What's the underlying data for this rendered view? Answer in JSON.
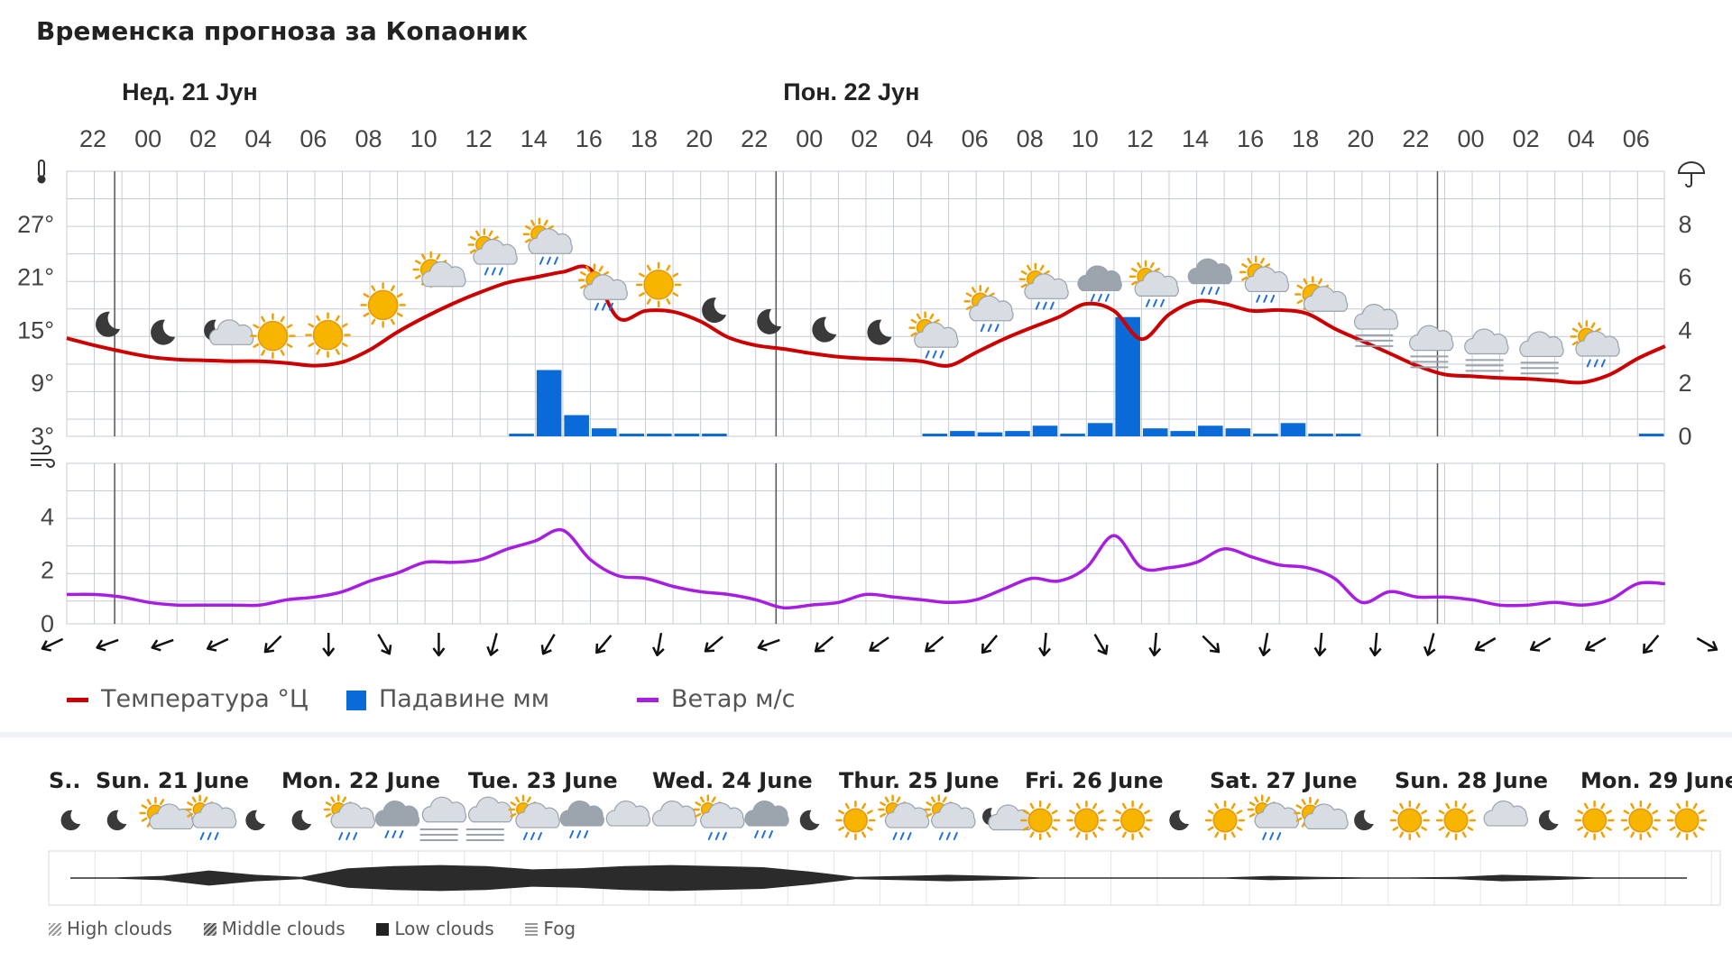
{
  "page": {
    "title": "Временска прогноза за Копаоник"
  },
  "chart_data": {
    "type": "line",
    "title": "Временска прогноза за Копаоник",
    "day_labels": [
      "Нед. 21 Јун",
      "Пон. 22 Јун"
    ],
    "hour_labels": [
      "22",
      "00",
      "02",
      "04",
      "06",
      "08",
      "10",
      "12",
      "14",
      "16",
      "18",
      "20",
      "22",
      "00",
      "02",
      "04",
      "06",
      "08",
      "10",
      "12",
      "14",
      "16",
      "18",
      "20",
      "22",
      "00",
      "02",
      "04",
      "06"
    ],
    "temperature": {
      "name": "Температура °Ц",
      "color": "#cc0000",
      "unit": "°",
      "ylim": [
        3,
        33
      ],
      "ticks": [
        "3°",
        "9°",
        "15°",
        "21°",
        "27°"
      ],
      "tick_values": [
        3,
        9,
        15,
        21,
        27
      ],
      "x_hours": [
        0,
        1,
        2,
        3,
        4,
        5,
        6,
        7,
        8,
        9,
        10,
        11,
        12,
        13,
        14,
        15,
        16,
        17,
        18,
        19,
        20,
        21,
        22,
        23,
        24,
        25,
        26,
        27,
        28,
        29,
        30,
        31,
        32,
        33,
        34,
        35,
        36,
        37,
        38,
        39,
        40,
        41,
        42,
        43,
        44,
        45,
        46,
        47,
        48,
        49,
        50,
        51,
        52,
        53,
        54,
        55,
        56,
        57,
        58
      ],
      "values": [
        14.1,
        13.3,
        12.6,
        12.0,
        11.7,
        11.6,
        11.5,
        11.5,
        11.3,
        11.0,
        11.4,
        12.8,
        14.8,
        16.5,
        18.0,
        19.3,
        20.4,
        21.0,
        21.6,
        21.9,
        16.4,
        17.2,
        17.1,
        16.0,
        14.2,
        13.3,
        12.9,
        12.4,
        12.0,
        11.8,
        11.7,
        11.5,
        11.0,
        12.5,
        14.0,
        15.3,
        16.5,
        18.0,
        17.2,
        14.0,
        16.8,
        18.3,
        18.0,
        17.2,
        17.3,
        16.9,
        15.2,
        13.8,
        12.4,
        11.0,
        10.0,
        9.8,
        9.6,
        9.5,
        9.3,
        9.1,
        10.0,
        11.8,
        13.2
      ]
    },
    "precipitation": {
      "name": "Падавине мм",
      "color": "#0a6ad8",
      "ylim": [
        0,
        10
      ],
      "ticks": [
        "0",
        "2",
        "4",
        "6",
        "8"
      ],
      "tick_values": [
        0,
        2,
        4,
        6,
        8
      ],
      "x_hours": [
        16,
        17,
        18,
        19,
        20,
        21,
        22,
        23,
        31,
        32,
        33,
        34,
        35,
        36,
        37,
        38,
        39,
        40,
        41,
        42,
        43,
        44,
        45,
        46,
        57
      ],
      "values": [
        0.1,
        2.5,
        0.8,
        0.3,
        0.1,
        0.1,
        0.1,
        0.1,
        0.1,
        0.2,
        0.15,
        0.2,
        0.4,
        0.1,
        0.5,
        4.5,
        0.3,
        0.2,
        0.4,
        0.3,
        0.1,
        0.5,
        0.1,
        0.1,
        0.1
      ]
    },
    "wind": {
      "name": "Ветар м/с",
      "color": "#a81ee0",
      "ylim": [
        0,
        6
      ],
      "ticks": [
        "0",
        "2",
        "4"
      ],
      "tick_values": [
        0,
        2,
        4
      ],
      "x_hours": [
        0,
        1,
        2,
        3,
        4,
        5,
        6,
        7,
        8,
        9,
        10,
        11,
        12,
        13,
        14,
        15,
        16,
        17,
        18,
        19,
        20,
        21,
        22,
        23,
        24,
        25,
        26,
        27,
        28,
        29,
        30,
        31,
        32,
        33,
        34,
        35,
        36,
        37,
        38,
        39,
        40,
        41,
        42,
        43,
        44,
        45,
        46,
        47,
        48,
        49,
        50,
        51,
        52,
        53,
        54,
        55,
        56,
        57,
        58
      ],
      "values": [
        1.1,
        1.1,
        1.0,
        0.8,
        0.7,
        0.7,
        0.7,
        0.7,
        0.9,
        1.0,
        1.2,
        1.6,
        1.9,
        2.3,
        2.3,
        2.4,
        2.8,
        3.1,
        3.5,
        2.4,
        1.8,
        1.7,
        1.4,
        1.2,
        1.1,
        0.9,
        0.6,
        0.7,
        0.8,
        1.1,
        1.0,
        0.9,
        0.8,
        0.9,
        1.3,
        1.7,
        1.6,
        2.1,
        3.3,
        2.1,
        2.1,
        2.3,
        2.8,
        2.5,
        2.2,
        2.1,
        1.7,
        0.8,
        1.2,
        1.0,
        1.0,
        0.9,
        0.7,
        0.7,
        0.8,
        0.7,
        0.9,
        1.5,
        1.5
      ]
    },
    "wind_directions_deg": [
      65,
      70,
      70,
      65,
      45,
      0,
      330,
      0,
      15,
      30,
      40,
      10,
      50,
      70,
      50,
      55,
      50,
      40,
      5,
      330,
      5,
      315,
      10,
      5,
      5,
      15,
      60,
      60,
      60,
      40,
      300
    ],
    "weather_icons": [
      "moon",
      "moon",
      "moon-cloud",
      "sun",
      "sun",
      "sun",
      "sun-cloud",
      "sun-cloud-rain",
      "sun-cloud-rain",
      "sun-cloud-rain",
      "sun",
      "moon",
      "moon",
      "moon",
      "moon",
      "sun-cloud-rain",
      "sun-cloud-rain",
      "sun-cloud-rain",
      "cloud-rain",
      "sun-cloud-rain",
      "cloud-rain",
      "sun-cloud-rain",
      "sun-cloud",
      "cloud-fog",
      "cloud-fog",
      "cloud-fog",
      "cloud-fog",
      "sun-cloud-rain"
    ],
    "legend": [
      {
        "name": "Температура °Ц",
        "color": "#cc0000",
        "kind": "line"
      },
      {
        "name": "Падавине мм",
        "color": "#0a6ad8",
        "kind": "bar"
      },
      {
        "name": "Ветар м/с",
        "color": "#a81ee0",
        "kind": "line"
      }
    ]
  },
  "week": {
    "day_labels": [
      "S..",
      "Sun. 21 June",
      "Mon. 22 June",
      "Tue. 23 June",
      "Wed. 24 June",
      "Thur. 25 June",
      "Fri. 26 June",
      "Sat. 27 June",
      "Sun. 28 June",
      "Mon. 29 June"
    ],
    "icons": [
      "moon",
      "moon",
      "sun-cloud",
      "sun-cloud-rain",
      "moon",
      "moon",
      "sun-cloud-rain",
      "cloud-rain",
      "cloud-fog",
      "cloud-fog",
      "sun-cloud-rain",
      "cloud-rain",
      "cloud",
      "cloud",
      "sun-cloud-rain",
      "cloud-rain",
      "moon",
      "sun",
      "sun-cloud-rain",
      "sun-cloud-rain",
      "moon-cloud",
      "sun",
      "sun",
      "sun",
      "moon",
      "sun",
      "sun-cloud-rain",
      "sun-cloud",
      "moon",
      "sun",
      "sun",
      "cloud",
      "moon",
      "sun",
      "sun",
      "sun"
    ],
    "cloud_cover_low": [
      0,
      0,
      0.1,
      0.35,
      0.15,
      0.05,
      0.45,
      0.55,
      0.6,
      0.55,
      0.4,
      0.45,
      0.55,
      0.6,
      0.55,
      0.5,
      0.3,
      0.05,
      0.1,
      0.15,
      0.1,
      0,
      0,
      0,
      0,
      0,
      0.1,
      0.05,
      0,
      0,
      0.05,
      0.15,
      0.1,
      0,
      0,
      0
    ],
    "legend": [
      "High clouds",
      "Middle clouds",
      "Low clouds",
      "Fog"
    ]
  }
}
